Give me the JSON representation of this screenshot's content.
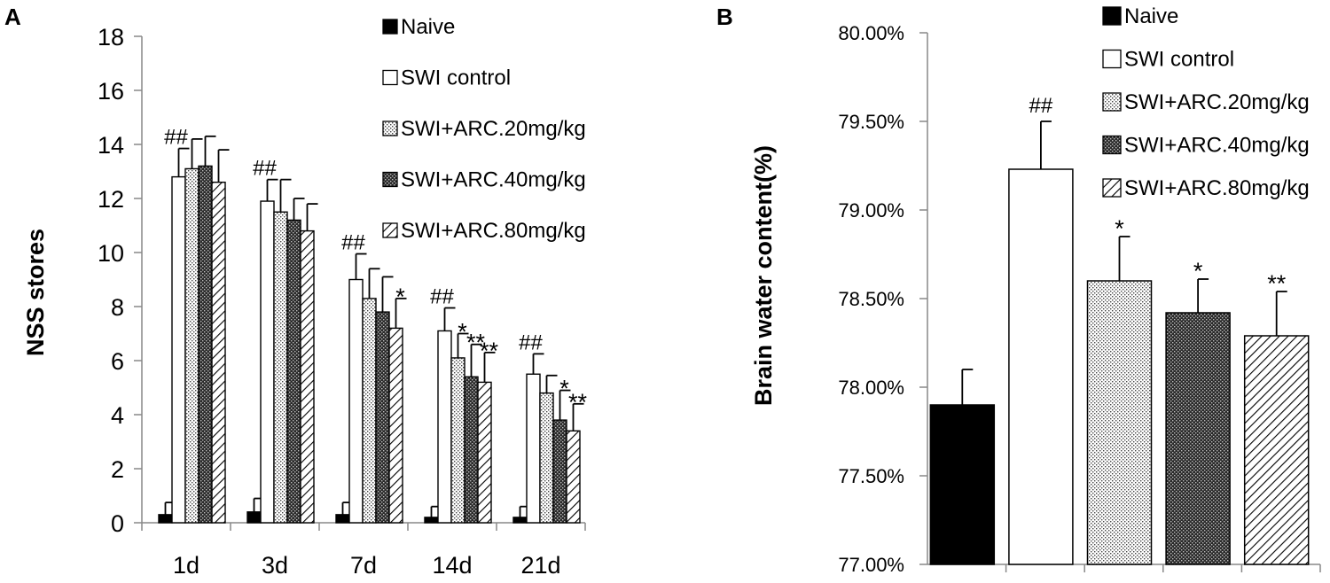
{
  "chart_data": [
    {
      "panel": "A",
      "type": "bar",
      "ylabel": "NSS  stores",
      "xlabel": "",
      "ylim": [
        0,
        18
      ],
      "yticks": [
        "0",
        "2",
        "4",
        "6",
        "8",
        "10",
        "12",
        "14",
        "16",
        "18"
      ],
      "categories": [
        "1d",
        "3d",
        "7d",
        "14d",
        "21d"
      ],
      "series": [
        {
          "name": "Naive",
          "pattern": "black",
          "values": [
            0.3,
            0.4,
            0.3,
            0.2,
            0.2
          ],
          "errors": [
            0.45,
            0.5,
            0.45,
            0.4,
            0.4
          ],
          "labels": [
            "",
            "",
            "",
            "",
            ""
          ]
        },
        {
          "name": "SWI control",
          "pattern": "white",
          "values": [
            12.8,
            11.9,
            9.0,
            7.1,
            5.5
          ],
          "errors": [
            1.05,
            0.8,
            0.95,
            0.85,
            0.75
          ],
          "labels": [
            "##",
            "##",
            "##",
            "##",
            "##"
          ]
        },
        {
          "name": "SWI+ARC.20mg/kg",
          "pattern": "dots",
          "values": [
            13.1,
            11.5,
            8.3,
            6.1,
            4.8
          ],
          "errors": [
            1.1,
            1.2,
            1.1,
            0.9,
            0.65
          ],
          "labels": [
            "",
            "",
            "",
            "*",
            ""
          ]
        },
        {
          "name": "SWI+ARC.40mg/kg",
          "pattern": "dark",
          "values": [
            13.2,
            11.2,
            7.8,
            5.4,
            3.8
          ],
          "errors": [
            1.1,
            0.8,
            1.3,
            1.2,
            1.1
          ],
          "labels": [
            "",
            "",
            "",
            "**",
            "*"
          ]
        },
        {
          "name": "SWI+ARC.80mg/kg",
          "pattern": "hatch",
          "values": [
            12.6,
            10.8,
            7.2,
            5.2,
            3.4
          ],
          "errors": [
            1.2,
            1.0,
            1.1,
            1.1,
            1.0
          ],
          "labels": [
            "",
            "",
            "*",
            "**",
            "**"
          ]
        }
      ]
    },
    {
      "panel": "B",
      "type": "bar",
      "ylabel": "Brain water content(%)",
      "xlabel": "",
      "ylim": [
        77.0,
        80.0
      ],
      "yticks": [
        "77.00%",
        "77.50%",
        "78.00%",
        "78.50%",
        "79.00%",
        "79.50%",
        "80.00%"
      ],
      "categories": [
        "Naive",
        "SWI control",
        "SWI+ARC.20mg/kg",
        "SWI+ARC.40mg/kg",
        "SWI+ARC.80mg/kg"
      ],
      "series": [
        {
          "name": "Brain water content",
          "values": [
            77.9,
            79.23,
            78.6,
            78.42,
            78.29
          ],
          "errors": [
            0.2,
            0.27,
            0.25,
            0.19,
            0.25
          ],
          "labels": [
            "",
            "##",
            "*",
            "*",
            "**"
          ],
          "patterns": [
            "black",
            "white",
            "dots",
            "dark",
            "hatch"
          ]
        }
      ]
    }
  ],
  "legend": [
    {
      "label": "Naive",
      "pattern": "black"
    },
    {
      "label": "SWI control",
      "pattern": "white"
    },
    {
      "label": "SWI+ARC.20mg/kg",
      "pattern": "dots"
    },
    {
      "label": "SWI+ARC.40mg/kg",
      "pattern": "dark"
    },
    {
      "label": "SWI+ARC.80mg/kg",
      "pattern": "hatch"
    }
  ],
  "panel_labels": {
    "a": "A",
    "b": "B"
  }
}
